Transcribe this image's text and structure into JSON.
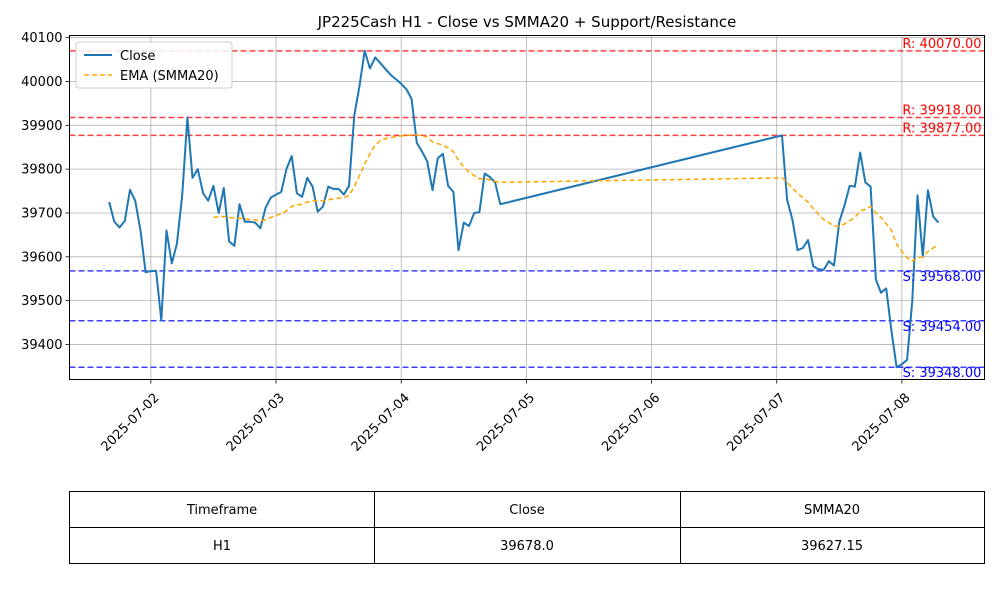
{
  "chart_data": {
    "type": "line",
    "title": "JP225Cash H1 - Close vs SMMA20 + Support/Resistance",
    "ylim": [
      39320,
      40105
    ],
    "y_ticks": [
      39400,
      39500,
      39600,
      39700,
      39800,
      39900,
      40000,
      40100
    ],
    "x_ticks": [
      "2025-07-02",
      "2025-07-03",
      "2025-07-04",
      "2025-07-05",
      "2025-07-06",
      "2025-07-07",
      "2025-07-08"
    ],
    "x_tick_days": [
      1,
      2,
      3,
      4,
      5,
      6,
      7
    ],
    "x_range_days": [
      0.35,
      7.66
    ],
    "grid": true,
    "legend": {
      "placement": "top-left",
      "entries": [
        {
          "label": "Close",
          "color": "#1f77b4",
          "style": "solid"
        },
        {
          "label": "EMA (SMMA20)",
          "color": "#ffa500",
          "style": "dashed"
        }
      ]
    },
    "series": [
      {
        "name": "Close",
        "color": "#1f77b4",
        "points": [
          [
            0.667,
            39725
          ],
          [
            0.708,
            39680
          ],
          [
            0.75,
            39667
          ],
          [
            0.792,
            39682
          ],
          [
            0.833,
            39753
          ],
          [
            0.875,
            39728
          ],
          [
            0.917,
            39660
          ],
          [
            0.958,
            39565
          ],
          [
            1.0,
            39567
          ],
          [
            1.042,
            39568
          ],
          [
            1.083,
            39455
          ],
          [
            1.125,
            39660
          ],
          [
            1.167,
            39585
          ],
          [
            1.208,
            39630
          ],
          [
            1.25,
            39740
          ],
          [
            1.292,
            39918
          ],
          [
            1.333,
            39780
          ],
          [
            1.375,
            39800
          ],
          [
            1.417,
            39745
          ],
          [
            1.458,
            39728
          ],
          [
            1.5,
            39762
          ],
          [
            1.542,
            39700
          ],
          [
            1.583,
            39757
          ],
          [
            1.625,
            39635
          ],
          [
            1.667,
            39625
          ],
          [
            1.708,
            39720
          ],
          [
            1.75,
            39680
          ],
          [
            1.792,
            39680
          ],
          [
            1.833,
            39678
          ],
          [
            1.875,
            39665
          ],
          [
            1.917,
            39712
          ],
          [
            1.958,
            39735
          ],
          [
            2.0,
            39742
          ],
          [
            2.042,
            39748
          ],
          [
            2.083,
            39800
          ],
          [
            2.125,
            39830
          ],
          [
            2.167,
            39745
          ],
          [
            2.208,
            39737
          ],
          [
            2.25,
            39780
          ],
          [
            2.292,
            39760
          ],
          [
            2.333,
            39703
          ],
          [
            2.375,
            39715
          ],
          [
            2.417,
            39760
          ],
          [
            2.458,
            39755
          ],
          [
            2.5,
            39755
          ],
          [
            2.542,
            39742
          ],
          [
            2.583,
            39762
          ],
          [
            2.625,
            39923
          ],
          [
            2.667,
            39990
          ],
          [
            2.708,
            40070
          ],
          [
            2.75,
            40030
          ],
          [
            2.792,
            40055
          ],
          [
            2.833,
            40042
          ],
          [
            2.875,
            40028
          ],
          [
            2.917,
            40015
          ],
          [
            2.958,
            40005
          ],
          [
            3.0,
            39995
          ],
          [
            3.042,
            39982
          ],
          [
            3.083,
            39960
          ],
          [
            3.125,
            39860
          ],
          [
            3.167,
            39840
          ],
          [
            3.208,
            39818
          ],
          [
            3.25,
            39752
          ],
          [
            3.292,
            39825
          ],
          [
            3.333,
            39835
          ],
          [
            3.375,
            39762
          ],
          [
            3.417,
            39748
          ],
          [
            3.458,
            39615
          ],
          [
            3.5,
            39678
          ],
          [
            3.542,
            39670
          ],
          [
            3.583,
            39700
          ],
          [
            3.625,
            39702
          ],
          [
            3.667,
            39790
          ],
          [
            3.708,
            39782
          ],
          [
            3.75,
            39770
          ],
          [
            3.792,
            39720
          ],
          [
            6.042,
            39877
          ],
          [
            6.083,
            39730
          ],
          [
            6.125,
            39685
          ],
          [
            6.167,
            39615
          ],
          [
            6.208,
            39620
          ],
          [
            6.25,
            39638
          ],
          [
            6.292,
            39578
          ],
          [
            6.333,
            39572
          ],
          [
            6.375,
            39570
          ],
          [
            6.417,
            39590
          ],
          [
            6.458,
            39580
          ],
          [
            6.5,
            39680
          ],
          [
            6.542,
            39718
          ],
          [
            6.583,
            39762
          ],
          [
            6.625,
            39760
          ],
          [
            6.667,
            39838
          ],
          [
            6.708,
            39770
          ],
          [
            6.75,
            39760
          ],
          [
            6.792,
            39548
          ],
          [
            6.833,
            39518
          ],
          [
            6.875,
            39528
          ],
          [
            6.917,
            39430
          ],
          [
            6.958,
            39348
          ],
          [
            7.0,
            39355
          ],
          [
            7.042,
            39365
          ],
          [
            7.083,
            39500
          ],
          [
            7.125,
            39740
          ],
          [
            7.167,
            39600
          ],
          [
            7.208,
            39752
          ],
          [
            7.25,
            39692
          ],
          [
            7.292,
            39678
          ]
        ]
      },
      {
        "name": "EMA (SMMA20)",
        "color": "#ffa500",
        "points": [
          [
            1.5,
            39690
          ],
          [
            1.542,
            39691
          ],
          [
            1.583,
            39692
          ],
          [
            1.625,
            39690
          ],
          [
            1.667,
            39688
          ],
          [
            1.708,
            39688
          ],
          [
            1.75,
            39686
          ],
          [
            1.792,
            39685
          ],
          [
            1.833,
            39684
          ],
          [
            1.875,
            39682
          ],
          [
            1.917,
            39685
          ],
          [
            1.958,
            39690
          ],
          [
            2.0,
            39695
          ],
          [
            2.042,
            39698
          ],
          [
            2.083,
            39705
          ],
          [
            2.125,
            39715
          ],
          [
            2.167,
            39718
          ],
          [
            2.208,
            39720
          ],
          [
            2.25,
            39725
          ],
          [
            2.292,
            39728
          ],
          [
            2.333,
            39728
          ],
          [
            2.375,
            39728
          ],
          [
            2.417,
            39730
          ],
          [
            2.458,
            39732
          ],
          [
            2.5,
            39734
          ],
          [
            2.542,
            39735
          ],
          [
            2.583,
            39740
          ],
          [
            2.625,
            39760
          ],
          [
            2.667,
            39785
          ],
          [
            2.708,
            39812
          ],
          [
            2.75,
            39835
          ],
          [
            2.792,
            39855
          ],
          [
            2.833,
            39865
          ],
          [
            2.875,
            39870
          ],
          [
            2.917,
            39872
          ],
          [
            2.958,
            39874
          ],
          [
            3.0,
            39876
          ],
          [
            3.042,
            39877
          ],
          [
            3.083,
            39878
          ],
          [
            3.125,
            39878
          ],
          [
            3.167,
            39877
          ],
          [
            3.208,
            39873
          ],
          [
            3.25,
            39862
          ],
          [
            3.292,
            39858
          ],
          [
            3.333,
            39855
          ],
          [
            3.375,
            39848
          ],
          [
            3.417,
            39840
          ],
          [
            3.458,
            39820
          ],
          [
            3.5,
            39805
          ],
          [
            3.542,
            39793
          ],
          [
            3.583,
            39785
          ],
          [
            3.625,
            39778
          ],
          [
            3.667,
            39778
          ],
          [
            3.708,
            39776
          ],
          [
            3.75,
            39772
          ],
          [
            3.792,
            39770
          ],
          [
            6.042,
            39780
          ],
          [
            6.083,
            39770
          ],
          [
            6.125,
            39757
          ],
          [
            6.167,
            39745
          ],
          [
            6.208,
            39735
          ],
          [
            6.25,
            39725
          ],
          [
            6.292,
            39710
          ],
          [
            6.333,
            39697
          ],
          [
            6.375,
            39685
          ],
          [
            6.417,
            39678
          ],
          [
            6.458,
            39670
          ],
          [
            6.5,
            39670
          ],
          [
            6.542,
            39675
          ],
          [
            6.583,
            39682
          ],
          [
            6.625,
            39690
          ],
          [
            6.667,
            39705
          ],
          [
            6.708,
            39708
          ],
          [
            6.75,
            39715
          ],
          [
            6.792,
            39700
          ],
          [
            6.833,
            39690
          ],
          [
            6.875,
            39675
          ],
          [
            6.917,
            39660
          ],
          [
            6.958,
            39628
          ],
          [
            7.0,
            39612
          ],
          [
            7.042,
            39598
          ],
          [
            7.083,
            39590
          ],
          [
            7.125,
            39597
          ],
          [
            7.167,
            39600
          ],
          [
            7.208,
            39612
          ],
          [
            7.25,
            39620
          ],
          [
            7.292,
            39627
          ]
        ]
      }
    ],
    "levels": [
      {
        "kind": "resistance",
        "value": 40070,
        "label": "R: 40070.00",
        "color": "#ff0000"
      },
      {
        "kind": "resistance",
        "value": 39918,
        "label": "R: 39918.00",
        "color": "#ff0000"
      },
      {
        "kind": "resistance",
        "value": 39877,
        "label": "R: 39877.00",
        "color": "#ff0000"
      },
      {
        "kind": "support",
        "value": 39568,
        "label": "S: 39568.00",
        "color": "#0000ff"
      },
      {
        "kind": "support",
        "value": 39454,
        "label": "S: 39454.00",
        "color": "#0000ff"
      },
      {
        "kind": "support",
        "value": 39348,
        "label": "S: 39348.00",
        "color": "#0000ff"
      }
    ],
    "table": {
      "headers": [
        "Timeframe",
        "Close",
        "SMMA20"
      ],
      "rows": [
        [
          "H1",
          "39678.0",
          "39627.15"
        ]
      ]
    }
  }
}
